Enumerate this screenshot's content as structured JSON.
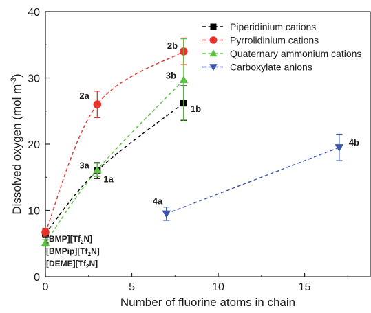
{
  "chart_data": {
    "type": "scatter",
    "xlabel": "Number of fluorine atoms in chain",
    "ylabel": "Dissolved oxygen (mol m",
    "ylabel_exp": "-3",
    "ylabel_close": ")",
    "xlim": [
      0,
      18.8
    ],
    "ylim": [
      0,
      40
    ],
    "xticks": [
      0,
      5,
      10,
      15
    ],
    "yticks": [
      0,
      10,
      20,
      30,
      40
    ],
    "x_tick_labels": [
      "0",
      "5",
      "10",
      "15"
    ],
    "y_tick_labels": [
      "0",
      "10",
      "20",
      "30",
      "40"
    ],
    "legend_position": "top-right",
    "series": [
      {
        "name": "Piperidinium cations",
        "marker": "square",
        "color": "#000000",
        "points": [
          {
            "x": 0,
            "y": 6.5,
            "err": 0.6,
            "label": ""
          },
          {
            "x": 3,
            "y": 16.0,
            "err": 1.2,
            "label": "1a"
          },
          {
            "x": 8,
            "y": 26.2,
            "err": 2.6,
            "label": "1b"
          }
        ]
      },
      {
        "name": "Pyrrolidinium cations",
        "marker": "circle",
        "color": "#e8312a",
        "points": [
          {
            "x": 0,
            "y": 6.7,
            "err": 0.6,
            "label": ""
          },
          {
            "x": 3,
            "y": 26.0,
            "err": 2.0,
            "label": "2a"
          },
          {
            "x": 8,
            "y": 34.0,
            "err": 2.0,
            "label": "2b"
          }
        ]
      },
      {
        "name": "Quaternary ammonium cations",
        "marker": "triangle-up",
        "color": "#5cc142",
        "points": [
          {
            "x": 0,
            "y": 5.1,
            "err": 0.5,
            "label": ""
          },
          {
            "x": 3,
            "y": 16.1,
            "err": 1.0,
            "label": "3a"
          },
          {
            "x": 8,
            "y": 29.7,
            "err": 6.2,
            "label": "3b"
          }
        ]
      },
      {
        "name": "Carboxylate anions",
        "marker": "triangle-down",
        "color": "#3c55a8",
        "points": [
          {
            "x": 7,
            "y": 9.5,
            "err": 1.0,
            "label": "4a"
          },
          {
            "x": 17,
            "y": 19.5,
            "err": 2.0,
            "label": "4b"
          }
        ]
      }
    ],
    "compound_labels": [
      {
        "pre": "[BMP][Tf",
        "sub": "2",
        "post": "N]"
      },
      {
        "pre": "[BMPip][Tf",
        "sub": "2",
        "post": "N]"
      },
      {
        "pre": "[DEME][Tf",
        "sub": "2",
        "post": "N]"
      }
    ]
  }
}
